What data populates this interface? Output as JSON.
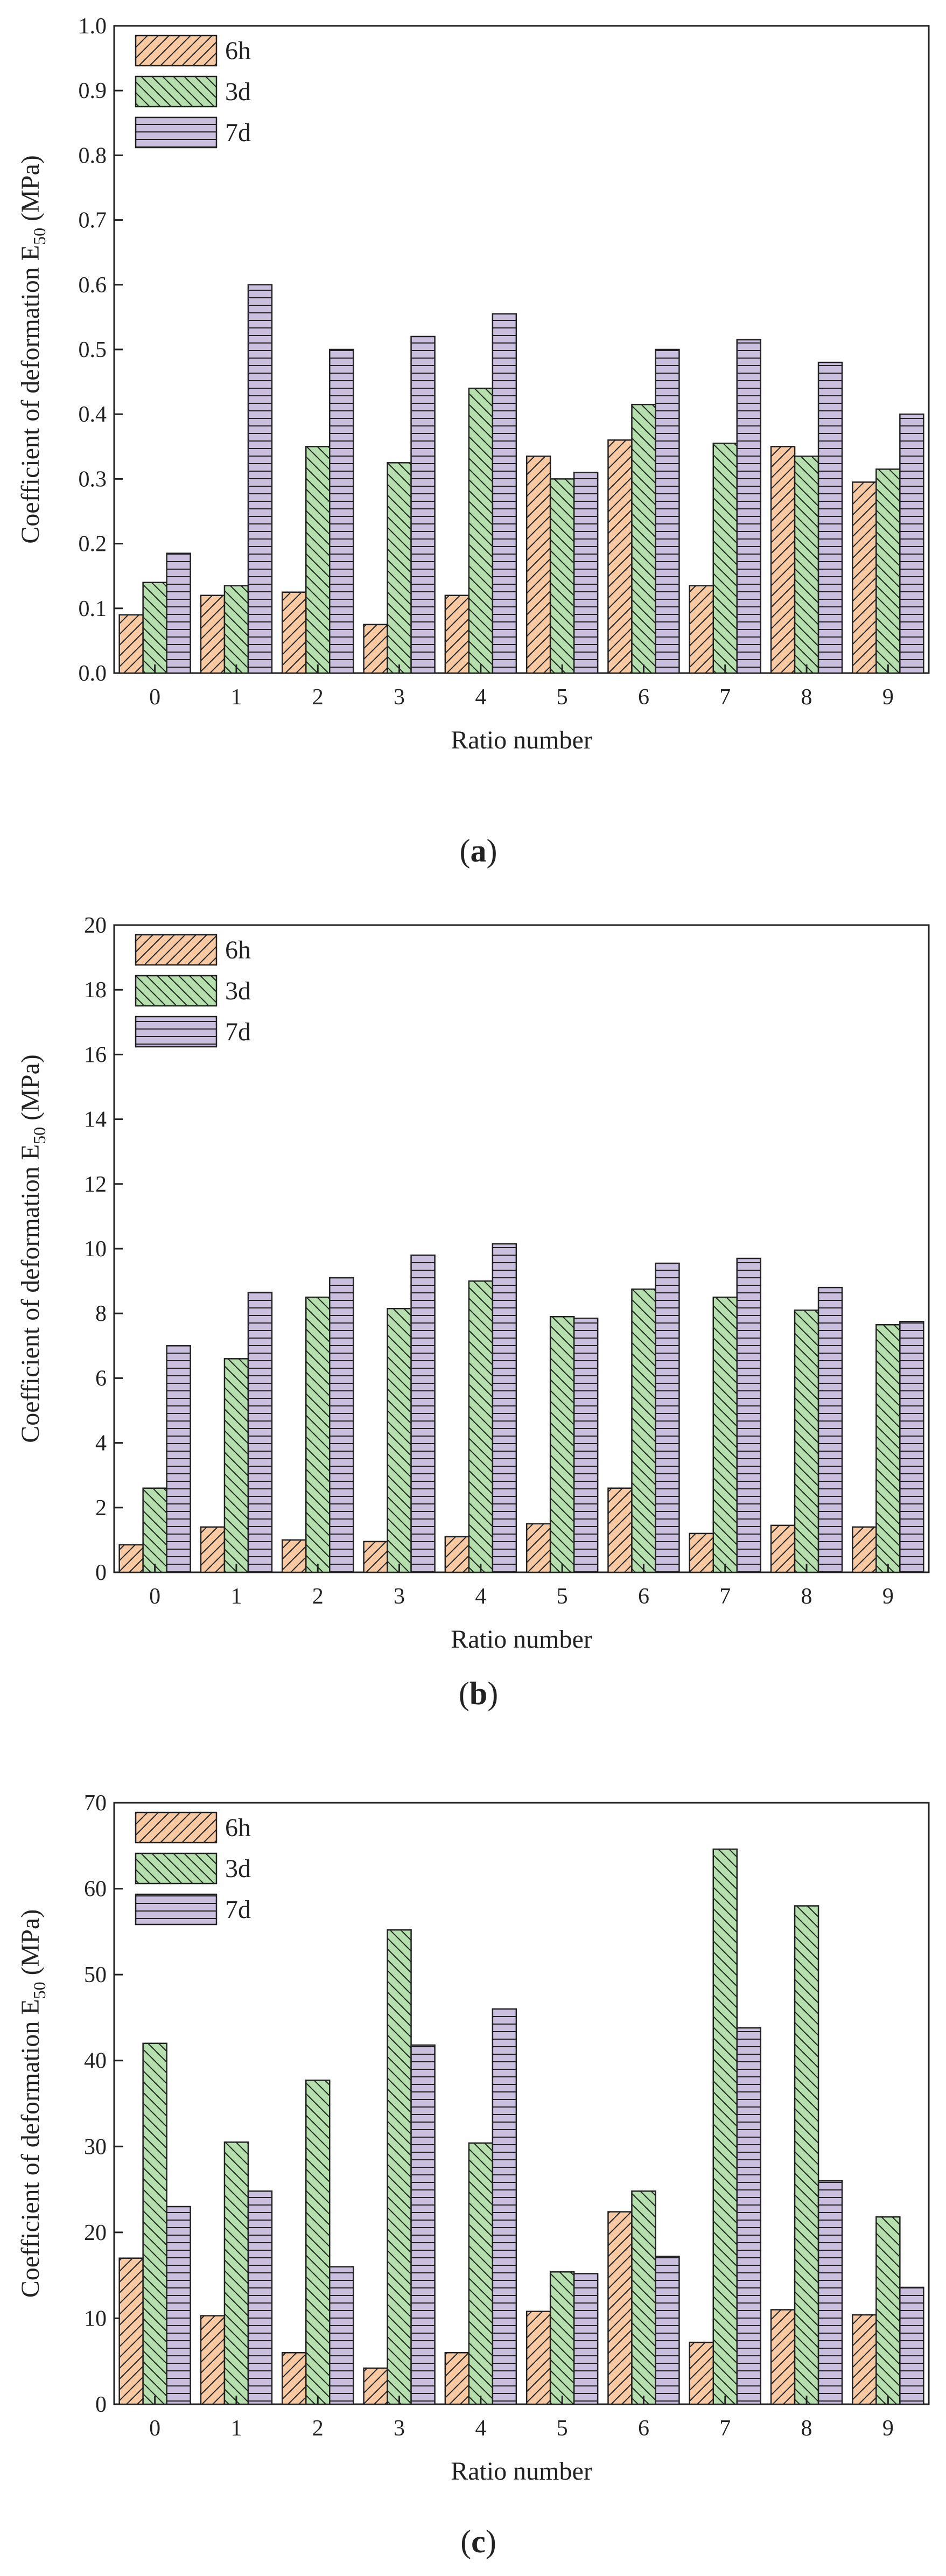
{
  "colors": {
    "6h": "#f9c9a2",
    "3d": "#b5e0ae",
    "7d": "#cbbfe0",
    "stroke": "#222222"
  },
  "chart_data": [
    {
      "type": "bar",
      "panel_label": "a",
      "xlabel": "Ratio number",
      "ylabel_main": "Coefficient of deformation E",
      "ylabel_sub": "50",
      "ylabel_unit": " (MPa)",
      "categories": [
        "0",
        "1",
        "2",
        "3",
        "4",
        "5",
        "6",
        "7",
        "8",
        "9"
      ],
      "ylim": [
        0,
        1.0
      ],
      "yticks": [
        "0.0",
        "0.1",
        "0.2",
        "0.3",
        "0.4",
        "0.5",
        "0.6",
        "0.7",
        "0.8",
        "0.9",
        "1.0"
      ],
      "legend_position": "top-left",
      "series": [
        {
          "name": "6h",
          "pattern": "diag-up",
          "values": [
            0.09,
            0.12,
            0.125,
            0.075,
            0.12,
            0.335,
            0.36,
            0.135,
            0.35,
            0.295
          ]
        },
        {
          "name": "3d",
          "pattern": "diag-down",
          "values": [
            0.14,
            0.135,
            0.35,
            0.325,
            0.44,
            0.3,
            0.415,
            0.355,
            0.335,
            0.315
          ]
        },
        {
          "name": "7d",
          "pattern": "horizontal",
          "values": [
            0.185,
            0.6,
            0.5,
            0.52,
            0.555,
            0.31,
            0.5,
            0.515,
            0.48,
            0.4
          ]
        }
      ]
    },
    {
      "type": "bar",
      "panel_label": "b",
      "xlabel": "Ratio number",
      "ylabel_main": "Coefficient of deformation E",
      "ylabel_sub": "50",
      "ylabel_unit": " (MPa)",
      "categories": [
        "0",
        "1",
        "2",
        "3",
        "4",
        "5",
        "6",
        "7",
        "8",
        "9"
      ],
      "ylim": [
        0,
        20
      ],
      "yticks": [
        "0",
        "2",
        "4",
        "6",
        "8",
        "10",
        "12",
        "14",
        "16",
        "18",
        "20"
      ],
      "legend_position": "top-left",
      "series": [
        {
          "name": "6h",
          "pattern": "diag-up",
          "values": [
            0.85,
            1.4,
            1.0,
            0.95,
            1.1,
            1.5,
            2.6,
            1.2,
            1.45,
            1.4
          ]
        },
        {
          "name": "3d",
          "pattern": "diag-down",
          "values": [
            2.6,
            6.6,
            8.5,
            8.15,
            9.0,
            7.9,
            8.75,
            8.5,
            8.1,
            7.65
          ]
        },
        {
          "name": "7d",
          "pattern": "horizontal",
          "values": [
            7.0,
            8.65,
            9.1,
            9.8,
            10.15,
            7.85,
            9.55,
            9.7,
            8.8,
            7.75
          ]
        }
      ]
    },
    {
      "type": "bar",
      "panel_label": "c",
      "xlabel": "Ratio number",
      "ylabel_main": "Coefficient of deformation E",
      "ylabel_sub": "50",
      "ylabel_unit": " (MPa)",
      "categories": [
        "0",
        "1",
        "2",
        "3",
        "4",
        "5",
        "6",
        "7",
        "8",
        "9"
      ],
      "ylim": [
        0,
        70
      ],
      "yticks": [
        "0",
        "10",
        "20",
        "30",
        "40",
        "50",
        "60",
        "70"
      ],
      "legend_position": "top-left",
      "series": [
        {
          "name": "6h",
          "pattern": "diag-up",
          "values": [
            17.0,
            10.3,
            6.0,
            4.2,
            6.0,
            10.8,
            22.4,
            7.2,
            11.0,
            10.4
          ]
        },
        {
          "name": "3d",
          "pattern": "diag-down",
          "values": [
            42.0,
            30.5,
            37.7,
            55.2,
            30.4,
            15.4,
            24.8,
            64.6,
            58.0,
            21.8
          ]
        },
        {
          "name": "7d",
          "pattern": "horizontal",
          "values": [
            23.0,
            24.8,
            16.0,
            41.8,
            46.0,
            15.2,
            17.2,
            43.8,
            26.0,
            13.6
          ]
        }
      ]
    }
  ]
}
